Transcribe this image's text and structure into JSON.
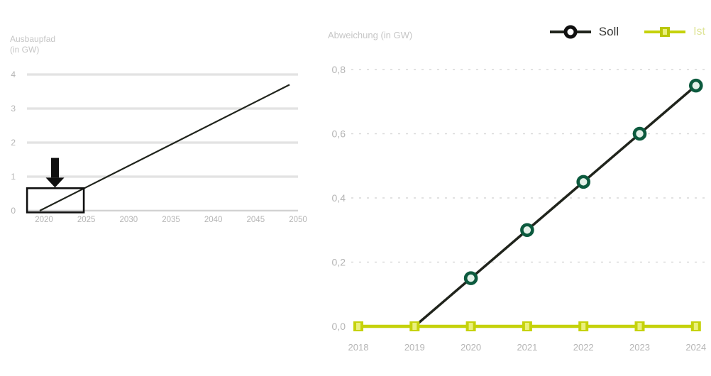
{
  "left_chart": {
    "title_line1": "Ausbaupfad",
    "title_line2": "(in GW)"
  },
  "right_chart": {
    "title": "Abweichung (in GW)",
    "legend": [
      {
        "label": "Soll"
      },
      {
        "label": "Ist"
      }
    ]
  },
  "colors": {
    "title_gray": "#c6c6c6",
    "tick_gray": "#b5b5b5",
    "grid_left": "#e3e3e3",
    "axis_left": "#d2d2d2",
    "grid_right": "#d9d9d9",
    "soll_line": "#20241c",
    "soll_marker_stroke": "#0c5a3e",
    "soll_marker_fill": "#e4f1e9",
    "ist_line": "#c5d20b",
    "ist_marker_inner": "#eaf07e",
    "annotation_black": "#101010"
  },
  "chart_data": [
    {
      "type": "line",
      "title": "Ausbaupfad (in GW)",
      "xlabel": "",
      "ylabel": "",
      "x_ticks": [
        "2020",
        "2025",
        "2030",
        "2035",
        "2040",
        "2045",
        "2050"
      ],
      "x_tick_values": [
        2020,
        2025,
        2030,
        2035,
        2040,
        2045,
        2050
      ],
      "y_ticks": [
        "0",
        "1",
        "2",
        "3",
        "4"
      ],
      "y_tick_values": [
        0,
        1,
        2,
        3,
        4
      ],
      "ylim": [
        0,
        4
      ],
      "grid": "solid horizontal",
      "legend_position": "none",
      "series": [
        {
          "name": "Soll",
          "x": [
            2019.5,
            2049
          ],
          "values": [
            0,
            3.7
          ]
        }
      ],
      "annotations": {
        "zoom_box": {
          "x_from": 2018,
          "x_to": 2024.7,
          "value_from": -0.05,
          "value_to": 0.66
        },
        "arrow_down": {
          "x": 2021.3,
          "value_tip": 0.68,
          "value_tail": 1.55
        }
      }
    },
    {
      "type": "line",
      "title": "Abweichung (in GW)",
      "xlabel": "",
      "ylabel": "",
      "x_ticks": [
        "2018",
        "2019",
        "2020",
        "2021",
        "2022",
        "2023",
        "2024"
      ],
      "x_tick_values": [
        2018,
        2019,
        2020,
        2021,
        2022,
        2023,
        2024
      ],
      "y_ticks": [
        "0,0",
        "0,2",
        "0,4",
        "0,6",
        "0,8"
      ],
      "y_tick_values": [
        0,
        0.2,
        0.4,
        0.6,
        0.8
      ],
      "ylim": [
        0,
        0.8
      ],
      "grid": "dashed horizontal",
      "legend_position": "top-right",
      "series": [
        {
          "name": "Soll",
          "x": [
            2019,
            2020,
            2021,
            2022,
            2023,
            2024
          ],
          "values": [
            0,
            0.15,
            0.3,
            0.45,
            0.6,
            0.75
          ],
          "marker": "circle",
          "marker_from_index": 1
        },
        {
          "name": "Ist",
          "x": [
            2018,
            2019,
            2020,
            2021,
            2022,
            2023,
            2024
          ],
          "values": [
            0,
            0,
            0,
            0,
            0,
            0,
            0
          ],
          "marker": "square"
        }
      ]
    }
  ]
}
